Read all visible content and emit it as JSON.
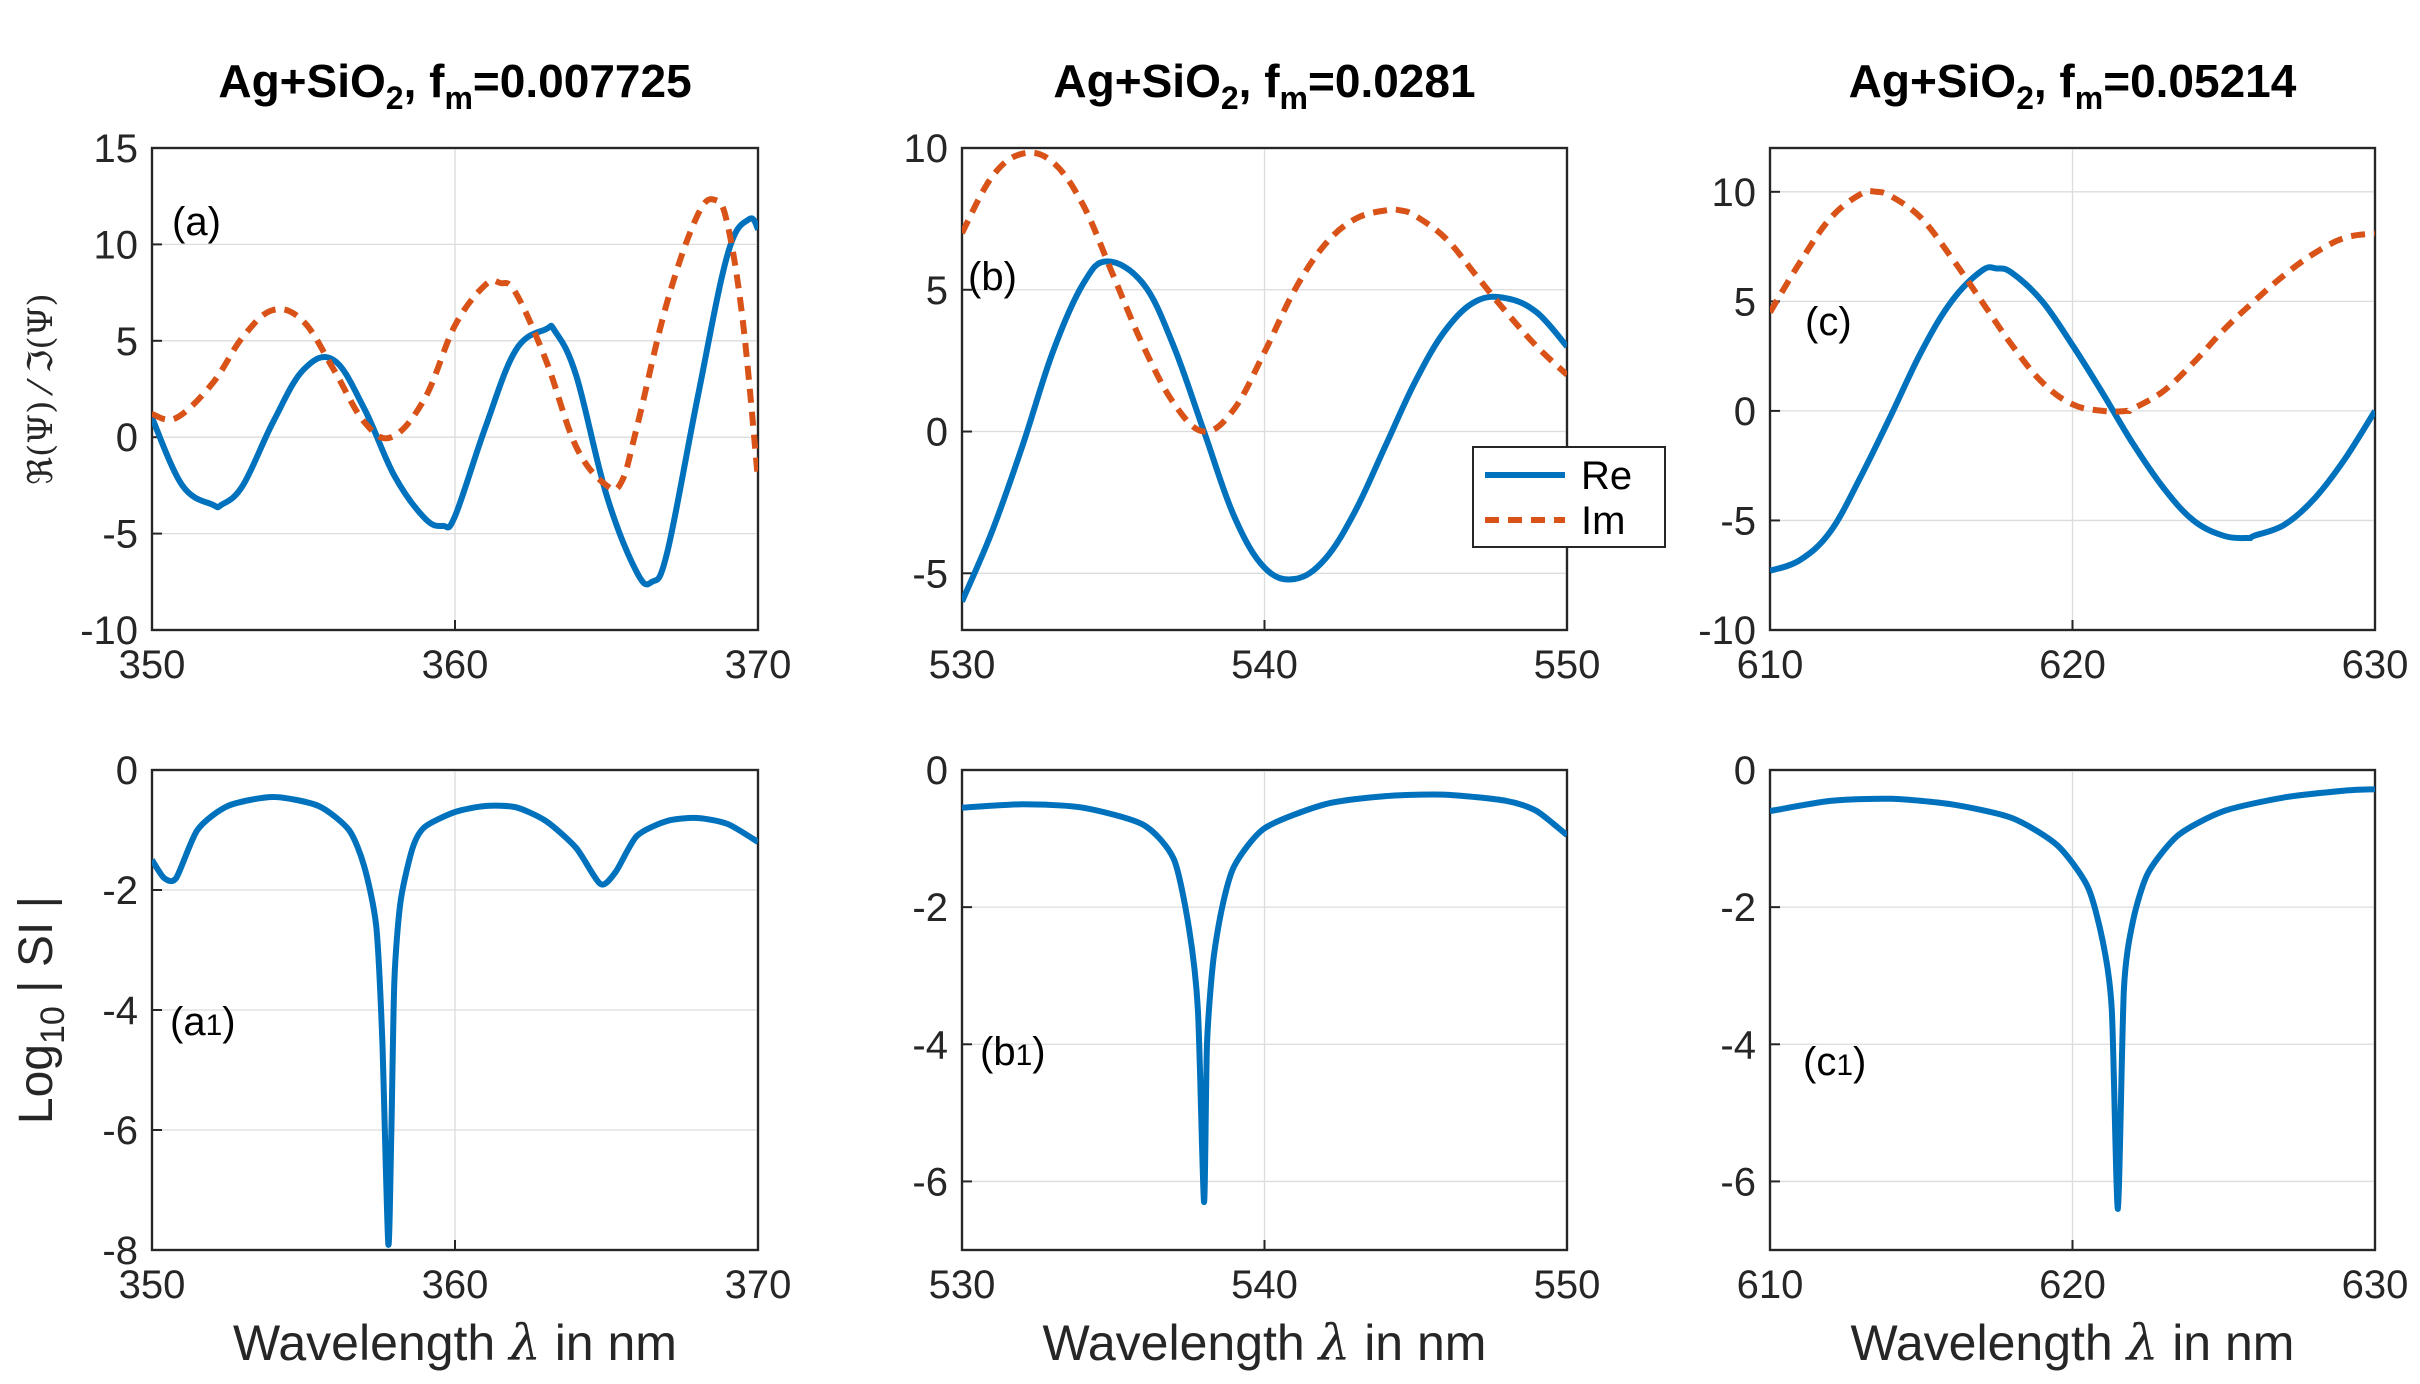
{
  "chart_data": [
    {
      "type": "line",
      "panel": "top-left",
      "title": "Ag+SiO",
      "title_sub2": "2",
      "title_mid": ", f",
      "title_subm": "m",
      "title_value": "=0.007725",
      "label": "(a)",
      "xlim": [
        350,
        370
      ],
      "ylim": [
        -10,
        15
      ],
      "xticks": [
        350,
        360,
        370
      ],
      "yticks": [
        -10,
        -5,
        0,
        5,
        10,
        15
      ],
      "ylabel": "ℜ(Ψ) ⁄ ℑ(Ψ)",
      "series": [
        {
          "name": "Re",
          "x": [
            350,
            351,
            352,
            352.3,
            353,
            354,
            355,
            356,
            357,
            358,
            359,
            359.6,
            360,
            361,
            362,
            363,
            363.3,
            364,
            365,
            366,
            366.5,
            367,
            368,
            369,
            369.7,
            370
          ],
          "y": [
            1.0,
            -2.5,
            -3.5,
            -3.5,
            -2.5,
            0.8,
            3.5,
            4.0,
            1.5,
            -2.0,
            -4.2,
            -4.6,
            -4.1,
            0.5,
            4.5,
            5.6,
            5.5,
            3.2,
            -3.0,
            -7.0,
            -7.5,
            -6.0,
            2.0,
            9.5,
            11.3,
            10.8
          ]
        },
        {
          "name": "Im",
          "x": [
            350,
            350.8,
            352,
            353,
            354,
            355,
            356,
            357,
            357.9,
            359,
            360,
            361,
            361.5,
            362,
            363,
            364,
            365,
            365.5,
            366,
            367,
            368,
            368.6,
            369,
            369.5,
            370
          ],
          "y": [
            1.2,
            1.0,
            2.8,
            5.2,
            6.6,
            6.0,
            3.5,
            0.8,
            0.0,
            2.0,
            5.8,
            7.9,
            8.0,
            7.5,
            4.0,
            -0.5,
            -2.5,
            -2.3,
            0.5,
            7.0,
            11.5,
            12.3,
            11.0,
            6.0,
            -2.2
          ]
        }
      ]
    },
    {
      "type": "line",
      "panel": "top-middle",
      "title": "Ag+SiO",
      "title_sub2": "2",
      "title_mid": ", f",
      "title_subm": "m",
      "title_value": "=0.0281",
      "label": "(b)",
      "xlim": [
        530,
        550
      ],
      "ylim": [
        -7,
        10
      ],
      "xticks": [
        530,
        540,
        550
      ],
      "yticks": [
        -5,
        0,
        5,
        10
      ],
      "legend": {
        "entries": [
          "Re",
          "Im"
        ],
        "placement": "center-right"
      },
      "series": [
        {
          "name": "Re",
          "x": [
            530,
            531,
            532,
            533,
            534,
            534.8,
            536,
            537,
            538,
            539,
            540,
            541,
            542,
            543,
            544,
            545,
            546,
            547,
            548,
            549,
            550
          ],
          "y": [
            -6.0,
            -3.5,
            -0.5,
            2.8,
            5.2,
            6.0,
            5.2,
            3.0,
            0.0,
            -3.0,
            -4.8,
            -5.2,
            -4.5,
            -2.8,
            -0.5,
            1.8,
            3.6,
            4.6,
            4.7,
            4.2,
            3.0
          ]
        },
        {
          "name": "Im",
          "x": [
            530,
            531,
            532,
            533,
            534,
            535,
            536,
            537,
            538,
            539,
            540,
            541,
            542,
            543,
            544,
            544.5,
            545,
            546,
            547,
            548,
            549,
            550
          ],
          "y": [
            7.0,
            9.0,
            9.8,
            9.5,
            8.0,
            5.5,
            3.0,
            1.0,
            0.0,
            0.8,
            2.8,
            5.0,
            6.6,
            7.5,
            7.8,
            7.8,
            7.6,
            6.8,
            5.5,
            4.2,
            3.0,
            2.0
          ]
        }
      ]
    },
    {
      "type": "line",
      "panel": "top-right",
      "title": "Ag+SiO",
      "title_sub2": "2",
      "title_mid": ", f",
      "title_subm": "m",
      "title_value": "=0.05214",
      "label": "(c)",
      "xlim": [
        610,
        630
      ],
      "ylim": [
        -10,
        12
      ],
      "xticks": [
        610,
        620,
        630
      ],
      "yticks": [
        -10,
        -5,
        0,
        5,
        10
      ],
      "series": [
        {
          "name": "Re",
          "x": [
            610,
            611,
            612,
            613,
            614,
            615,
            616,
            617,
            617.5,
            618,
            619,
            620,
            621,
            622,
            623,
            624,
            625,
            625.8,
            626,
            627,
            628,
            629,
            630
          ],
          "y": [
            -7.3,
            -6.8,
            -5.5,
            -3.0,
            -0.2,
            2.7,
            5.0,
            6.4,
            6.5,
            6.3,
            5.0,
            3.0,
            0.8,
            -1.5,
            -3.5,
            -5.0,
            -5.7,
            -5.8,
            -5.7,
            -5.2,
            -4.0,
            -2.2,
            0.0
          ]
        },
        {
          "name": "Im",
          "x": [
            610,
            611,
            612,
            613,
            613.5,
            614,
            615,
            616,
            617,
            618,
            619,
            620,
            621,
            621.8,
            622,
            623,
            624,
            625,
            626,
            627,
            628,
            629,
            630
          ],
          "y": [
            4.5,
            6.8,
            8.8,
            9.9,
            10.0,
            9.8,
            8.8,
            7.0,
            5.0,
            3.0,
            1.3,
            0.3,
            0.0,
            0.0,
            0.1,
            0.9,
            2.2,
            3.7,
            5.0,
            6.2,
            7.2,
            7.9,
            8.1
          ]
        }
      ]
    },
    {
      "type": "line",
      "panel": "bottom-left",
      "label": "(a",
      "label_sub": "1",
      "label_end": ")",
      "xlim": [
        350,
        370
      ],
      "ylim": [
        -8,
        0
      ],
      "xticks": [
        350,
        360,
        370
      ],
      "yticks": [
        -8,
        -6,
        -4,
        -2,
        0
      ],
      "xlabel": "Wavelength",
      "xlabel_sym": "λ",
      "xlabel_unit": "in nm",
      "ylabel": "Log",
      "ylabel_sub": "10",
      "ylabel_end": "| SI |",
      "series": [
        {
          "name": "SI",
          "x": [
            350,
            350.4,
            350.8,
            351.5,
            352.5,
            354,
            355.5,
            356.5,
            357,
            357.4,
            357.6,
            357.8,
            357.9,
            358,
            358.2,
            358.6,
            359,
            360,
            361,
            362,
            363,
            364,
            364.8,
            365.3,
            366,
            367,
            368,
            369,
            370
          ],
          "y": [
            -1.5,
            -1.8,
            -1.8,
            -1.0,
            -0.6,
            -0.45,
            -0.6,
            -1.0,
            -1.6,
            -2.6,
            -4.5,
            -7.9,
            -6.0,
            -3.5,
            -2.2,
            -1.3,
            -0.95,
            -0.7,
            -0.6,
            -0.62,
            -0.85,
            -1.3,
            -1.9,
            -1.7,
            -1.1,
            -0.85,
            -0.8,
            -0.9,
            -1.2
          ]
        }
      ]
    },
    {
      "type": "line",
      "panel": "bottom-middle",
      "label": "(b",
      "label_sub": "1",
      "label_end": ")",
      "xlim": [
        530,
        550
      ],
      "ylim": [
        -7,
        0
      ],
      "xticks": [
        530,
        540,
        550
      ],
      "yticks": [
        -6,
        -4,
        -2,
        0
      ],
      "xlabel": "Wavelength",
      "xlabel_sym": "λ",
      "xlabel_unit": "in nm",
      "series": [
        {
          "name": "SI",
          "x": [
            530,
            532,
            534,
            536,
            537,
            537.5,
            537.8,
            538,
            538.1,
            538.3,
            538.6,
            539,
            540,
            542,
            544,
            546,
            548,
            549,
            550
          ],
          "y": [
            -0.55,
            -0.5,
            -0.55,
            -0.8,
            -1.3,
            -2.3,
            -3.5,
            -6.3,
            -4.0,
            -2.8,
            -2.0,
            -1.4,
            -0.85,
            -0.5,
            -0.38,
            -0.36,
            -0.45,
            -0.6,
            -0.95
          ]
        }
      ]
    },
    {
      "type": "line",
      "panel": "bottom-right",
      "label": "(c",
      "label_sub": "1",
      "label_end": ")",
      "xlim": [
        610,
        630
      ],
      "ylim": [
        -7,
        0
      ],
      "xticks": [
        610,
        620,
        630
      ],
      "yticks": [
        -6,
        -4,
        -2,
        0
      ],
      "xlabel": "Wavelength",
      "xlabel_sym": "λ",
      "xlabel_unit": "in nm",
      "series": [
        {
          "name": "SI",
          "x": [
            610,
            612,
            614,
            616,
            618,
            619.5,
            620.5,
            621,
            621.3,
            621.5,
            621.7,
            622,
            622.5,
            623.5,
            625,
            627,
            629,
            630
          ],
          "y": [
            -0.6,
            -0.45,
            -0.42,
            -0.5,
            -0.7,
            -1.1,
            -1.7,
            -2.5,
            -3.5,
            -6.4,
            -3.2,
            -2.2,
            -1.5,
            -0.95,
            -0.6,
            -0.4,
            -0.3,
            -0.28
          ]
        }
      ]
    }
  ],
  "legend": {
    "re_label": "Re",
    "im_label": "Im"
  },
  "colors": {
    "re": "#0072BD",
    "im": "#D95319"
  }
}
